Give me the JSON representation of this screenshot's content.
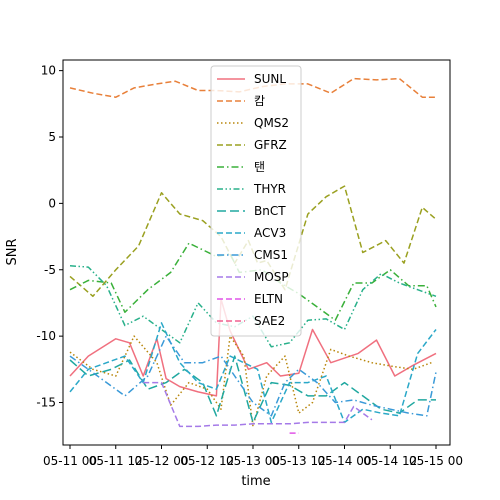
{
  "chart_data": {
    "type": "line",
    "xlabel": "time",
    "ylabel": "SNR",
    "xlim": [
      0,
      4.0
    ],
    "ylim": [
      -18.2,
      10.8
    ],
    "x_ticks": [
      {
        "value": 0.0,
        "label": "05-11 00"
      },
      {
        "value": 0.5,
        "label": "05-11 12"
      },
      {
        "value": 1.0,
        "label": "05-12 00"
      },
      {
        "value": 1.5,
        "label": "05-12 12"
      },
      {
        "value": 2.0,
        "label": "05-13 00"
      },
      {
        "value": 2.5,
        "label": "05-13 12"
      },
      {
        "value": 3.0,
        "label": "05-14 00"
      },
      {
        "value": 3.5,
        "label": "05-14 12"
      },
      {
        "value": 4.0,
        "label": "05-15 00"
      }
    ],
    "y_ticks": [
      10,
      5,
      0,
      -5,
      -10,
      -15
    ],
    "legend_position": "top-center",
    "series": [
      {
        "name": "SUNL",
        "color": "#f0707f",
        "dash": "solid",
        "x": [
          0.0,
          0.2,
          0.5,
          0.65,
          0.8,
          0.95,
          1.05,
          1.2,
          1.4,
          1.6,
          1.65,
          1.75,
          1.95,
          2.15,
          2.3,
          2.5,
          2.65,
          2.85,
          3.15,
          3.35,
          3.55,
          3.75,
          4.0
        ],
        "y": [
          -13,
          -11.5,
          -10.2,
          -10.5,
          -13,
          -10.2,
          -13.2,
          -13.8,
          -14.2,
          -14.5,
          -7.2,
          -9.6,
          -12.5,
          -12,
          -13,
          -12.8,
          -9.5,
          -12,
          -11.3,
          -10.3,
          -13,
          -12.2,
          -11.3
        ]
      },
      {
        "name": "캄",
        "color": "#e8803a",
        "dash": "dashed",
        "x": [
          0.0,
          0.25,
          0.5,
          0.7,
          0.95,
          1.15,
          1.4,
          1.6,
          1.85,
          2.1,
          2.35,
          2.6,
          2.85,
          3.1,
          3.35,
          3.6,
          3.85,
          4.0
        ],
        "y": [
          8.7,
          8.3,
          8.0,
          8.7,
          9.0,
          9.2,
          8.5,
          8.5,
          8.4,
          8.8,
          9.0,
          9.0,
          8.3,
          9.4,
          9.3,
          9.4,
          8.0,
          8.0
        ]
      },
      {
        "name": "QMS2",
        "color": "#b8860b",
        "dash": "dotted",
        "x": [
          0.0,
          0.25,
          0.5,
          0.7,
          0.95,
          1.1,
          1.3,
          1.5,
          1.65,
          1.75,
          1.9,
          2.0,
          2.15,
          2.35,
          2.5,
          2.65,
          2.85,
          3.05,
          3.3,
          3.55,
          3.75,
          3.95
        ],
        "y": [
          -11.2,
          -12.5,
          -13,
          -10,
          -12,
          -15.2,
          -13.5,
          -14,
          -15.5,
          -10,
          -11.5,
          -16.8,
          -13,
          -11.5,
          -15.8,
          -15,
          -11,
          -11.5,
          -12,
          -12.3,
          -12.5,
          -12
        ]
      },
      {
        "name": "GFRZ",
        "color": "#9aa020",
        "dash": "dashed",
        "x": [
          0.0,
          0.25,
          0.5,
          0.75,
          1.0,
          1.2,
          1.45,
          1.65,
          1.8,
          1.95,
          2.05,
          2.15,
          2.35,
          2.6,
          2.8,
          3.0,
          3.2,
          3.45,
          3.65,
          3.85,
          4.0
        ],
        "y": [
          -5.5,
          -7,
          -5,
          -3.2,
          0.8,
          -0.8,
          -1.3,
          -2.5,
          -4.5,
          -2.8,
          -4.5,
          -4.3,
          -6.5,
          -0.8,
          0.5,
          1.3,
          -3.7,
          -2.8,
          -4.5,
          -0.3,
          -1.2
        ]
      },
      {
        "name": "탠",
        "color": "#3ab03a",
        "dash": "dashdot",
        "x": [
          0.0,
          0.2,
          0.45,
          0.6,
          0.85,
          1.1,
          1.3,
          1.45,
          1.6,
          1.75,
          1.85,
          2.1,
          2.3,
          2.5,
          2.7,
          2.9,
          3.1,
          3.3,
          3.5,
          3.7,
          3.9,
          4.0
        ],
        "y": [
          -6.5,
          -5.8,
          -6,
          -8.2,
          -6.5,
          -5.2,
          -3,
          -3.5,
          -4,
          -3.8,
          -5.2,
          -5,
          -6,
          -6.8,
          -7.8,
          -8.8,
          -6,
          -6,
          -5,
          -6.2,
          -6.2,
          -7.8
        ]
      },
      {
        "name": "THYR",
        "color": "#28b08a",
        "dash": "dashdotdot",
        "x": [
          0.0,
          0.2,
          0.4,
          0.6,
          0.8,
          1.0,
          1.2,
          1.4,
          1.6,
          1.8,
          2.0,
          2.2,
          2.4,
          2.6,
          2.8,
          3.0,
          3.2,
          3.4,
          3.6,
          3.8,
          4.0
        ],
        "y": [
          -4.7,
          -4.8,
          -6.2,
          -9.2,
          -8.5,
          -9.5,
          -10.5,
          -7.5,
          -9,
          -9.3,
          -8.5,
          -10.8,
          -10.5,
          -8.8,
          -8.7,
          -9.5,
          -6.5,
          -5.3,
          -6,
          -6.5,
          -7
        ]
      },
      {
        "name": "BnCT",
        "color": "#20a8a0",
        "dash": "longdash",
        "x": [
          0.0,
          0.2,
          0.45,
          0.65,
          0.85,
          1.05,
          1.25,
          1.45,
          1.6,
          1.8,
          2.0,
          2.2,
          2.4,
          2.6,
          2.8,
          3.0,
          3.2,
          3.4,
          3.6,
          3.8,
          4.0
        ],
        "y": [
          -11.8,
          -13,
          -12.5,
          -11.8,
          -14,
          -13.5,
          -12.5,
          -13.5,
          -16,
          -11.5,
          -16.5,
          -13.5,
          -13.7,
          -14.5,
          -14.5,
          -13.5,
          -14.5,
          -15.5,
          -15.8,
          -14.8,
          -14.8
        ]
      },
      {
        "name": "ACV3",
        "color": "#2aa8c8",
        "dash": "dashed",
        "x": [
          0.0,
          0.2,
          0.4,
          0.6,
          0.8,
          1.0,
          1.2,
          1.4,
          1.6,
          1.75,
          1.9,
          2.05,
          2.2,
          2.4,
          2.6,
          2.8,
          3.0,
          3.2,
          3.4,
          3.6,
          3.8,
          4.0
        ],
        "y": [
          -14.2,
          -12.5,
          -12,
          -11.5,
          -13.5,
          -9,
          -12,
          -13.5,
          -14,
          -11.5,
          -12,
          -12.5,
          -16.5,
          -13.5,
          -13.5,
          -13,
          -16.5,
          -15.5,
          -15.8,
          -16,
          -11.3,
          -9.5
        ]
      },
      {
        "name": "CMS1",
        "color": "#3a9ad8",
        "dash": "dashdot",
        "x": [
          0.0,
          0.2,
          0.4,
          0.6,
          0.85,
          1.05,
          1.25,
          1.45,
          1.65,
          1.8,
          2.0,
          2.2,
          2.35,
          2.5,
          2.7,
          2.9,
          3.1,
          3.3,
          3.5,
          3.7,
          3.9,
          4.0
        ],
        "y": [
          -11.5,
          -12.5,
          -13.5,
          -14.5,
          -13,
          -10,
          -12,
          -12,
          -11.5,
          -13,
          -15,
          -16,
          -13.5,
          -12.5,
          -13.5,
          -15,
          -14.8,
          -15.2,
          -15.5,
          -15.8,
          -16,
          -12.7
        ]
      },
      {
        "name": "MOSP",
        "color": "#a57ae8",
        "dash": "dashed",
        "x": [
          0.8,
          1.0,
          1.2,
          1.4,
          1.6,
          1.8,
          2.0,
          2.2,
          2.4,
          2.6,
          2.8,
          3.0,
          3.1,
          3.3
        ],
        "y": [
          -13.5,
          -13.5,
          -16.8,
          -16.8,
          -16.7,
          -16.7,
          -16.6,
          -16.6,
          -16.6,
          -16.5,
          -16.5,
          -16.5,
          -15.3,
          -16.3
        ]
      },
      {
        "name": "ELTN",
        "color": "#e055e8",
        "dash": "dashed",
        "x": [
          2.4,
          2.5
        ],
        "y": [
          -17.3,
          -17.3
        ]
      },
      {
        "name": "SAE2",
        "color": "#f06090",
        "dash": "dashed",
        "x": [],
        "y": []
      }
    ]
  }
}
